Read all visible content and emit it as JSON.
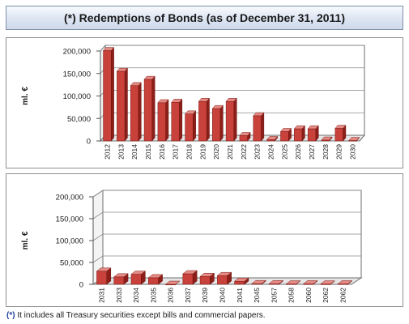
{
  "title": "(*) Redemptions of Bonds (as of December 31, 2011)",
  "footnote": {
    "marker": "(*)",
    "text": " It includes all Treasury securities except  bills and commercial papers."
  },
  "colors": {
    "bar_front": "#c8413a",
    "bar_side": "#8c1f1a",
    "bar_top": "#e58a84",
    "title_bg": "#d7e0ef",
    "grid": "#8a8a8a"
  },
  "chart_data": [
    {
      "type": "bar",
      "ylabel": "ml. €",
      "ylim": [
        0,
        200000
      ],
      "yticks": [
        "0",
        "50,000",
        "100,000",
        "150,000",
        "200,000"
      ],
      "grid": true,
      "categories": [
        "2012",
        "2013",
        "2014",
        "2015",
        "2016",
        "2017",
        "2018",
        "2019",
        "2020",
        "2021",
        "2022",
        "2023",
        "2024",
        "2025",
        "2026",
        "2027",
        "2028",
        "2029",
        "2030"
      ],
      "values": [
        201000,
        155000,
        123000,
        137000,
        85000,
        86000,
        60000,
        88000,
        72000,
        88000,
        12000,
        56000,
        3000,
        21000,
        27000,
        27000,
        2000,
        28000,
        1000
      ]
    },
    {
      "type": "bar",
      "ylabel": "ml. €",
      "ylim": [
        0,
        200000
      ],
      "yticks": [
        "0",
        "50,000",
        "100,000",
        "150,000",
        "200,000"
      ],
      "grid": true,
      "categories": [
        "2031",
        "2033",
        "2034",
        "2035",
        "2036",
        "2037",
        "2039",
        "2040",
        "2041",
        "2045",
        "2057",
        "2058",
        "2060",
        "2062",
        "2062"
      ],
      "values": [
        30000,
        17000,
        23000,
        15000,
        0,
        24000,
        18000,
        20000,
        7000,
        1500,
        1200,
        800,
        900,
        600,
        900
      ]
    }
  ]
}
